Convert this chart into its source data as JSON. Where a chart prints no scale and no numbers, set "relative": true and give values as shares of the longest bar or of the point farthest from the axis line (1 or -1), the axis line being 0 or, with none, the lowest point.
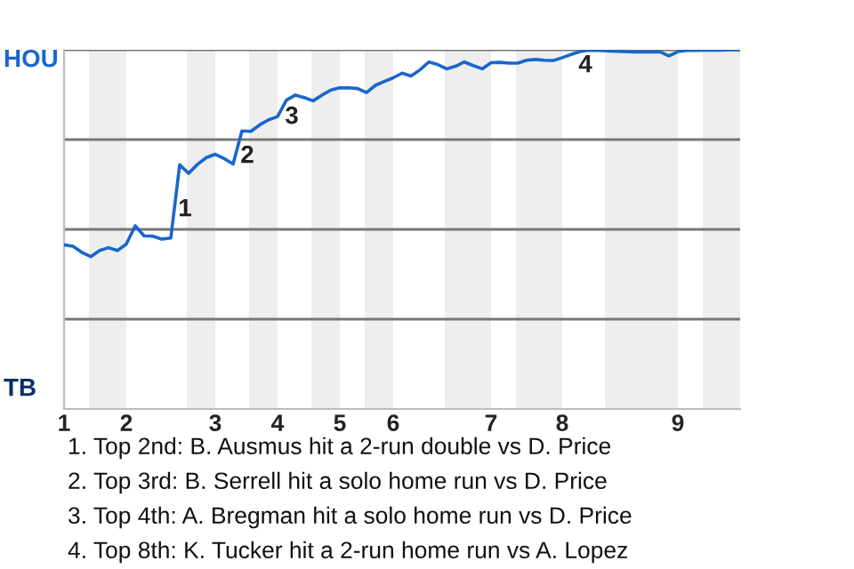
{
  "chart_data": {
    "type": "line",
    "relative": true,
    "categories": [
      "1",
      null,
      null,
      null,
      null,
      null,
      null,
      "2",
      null,
      null,
      null,
      null,
      null,
      null,
      null,
      null,
      null,
      "3",
      null,
      null,
      null,
      null,
      null,
      null,
      "4",
      null,
      null,
      null,
      null,
      null,
      null,
      "5",
      null,
      null,
      null,
      null,
      null,
      "6",
      null,
      null,
      null,
      null,
      null,
      null,
      null,
      null,
      null,
      null,
      "7",
      null,
      null,
      null,
      null,
      null,
      null,
      null,
      "8",
      null,
      null,
      null,
      null,
      null,
      null,
      null,
      null,
      null,
      null,
      null,
      null,
      "9",
      null,
      null,
      null,
      null,
      null,
      null,
      null
    ],
    "series": [
      {
        "color": "#1a66cc",
        "values": [
          0.457,
          0.453,
          0.436,
          0.424,
          0.441,
          0.449,
          0.441,
          0.459,
          0.51,
          0.482,
          0.481,
          0.473,
          0.476,
          0.68,
          0.656,
          0.681,
          0.7,
          0.709,
          0.697,
          0.682,
          0.774,
          0.773,
          0.791,
          0.805,
          0.814,
          0.86,
          0.874,
          0.867,
          0.858,
          0.874,
          0.888,
          0.894,
          0.894,
          0.892,
          0.881,
          0.901,
          0.912,
          0.922,
          0.935,
          0.927,
          0.944,
          0.966,
          0.959,
          0.947,
          0.954,
          0.966,
          0.956,
          0.947,
          0.964,
          0.965,
          0.963,
          0.963,
          0.971,
          0.973,
          0.971,
          0.97,
          0.978,
          0.987,
          0.995,
          0.999,
          0.998,
          0.997,
          0.996,
          0.995,
          0.994,
          0.994,
          0.994,
          0.994,
          0.983,
          0.995,
          0.998,
          0.998,
          0.999,
          0.999,
          0.999,
          1,
          1
        ]
      }
    ],
    "grid": false,
    "marker": "none",
    "line_style": "solid",
    "ref_lines": [
      {
        "axis": "y",
        "value": 0.25,
        "color": "#777777"
      },
      {
        "axis": "y",
        "value": 0.5,
        "color": "#777777"
      },
      {
        "axis": "y",
        "value": 0.75,
        "color": "#777777"
      },
      {
        "axis": "y",
        "value": 1,
        "color": "#777777"
      }
    ],
    "annotations": [
      "HOU",
      "TB",
      "1",
      "2",
      "3",
      "4",
      "1. Top 2nd: B. Ausmus hit a 2-run double vs D. Price",
      "2. Top 3rd: B. Serrell hit a solo home run vs D. Price",
      "3. Top 4th: A. Bregman hit a solo home run vs D. Price",
      "4. Top 8th: K. Tucker hit a 2-run home run vs A. Lopez"
    ]
  }
}
